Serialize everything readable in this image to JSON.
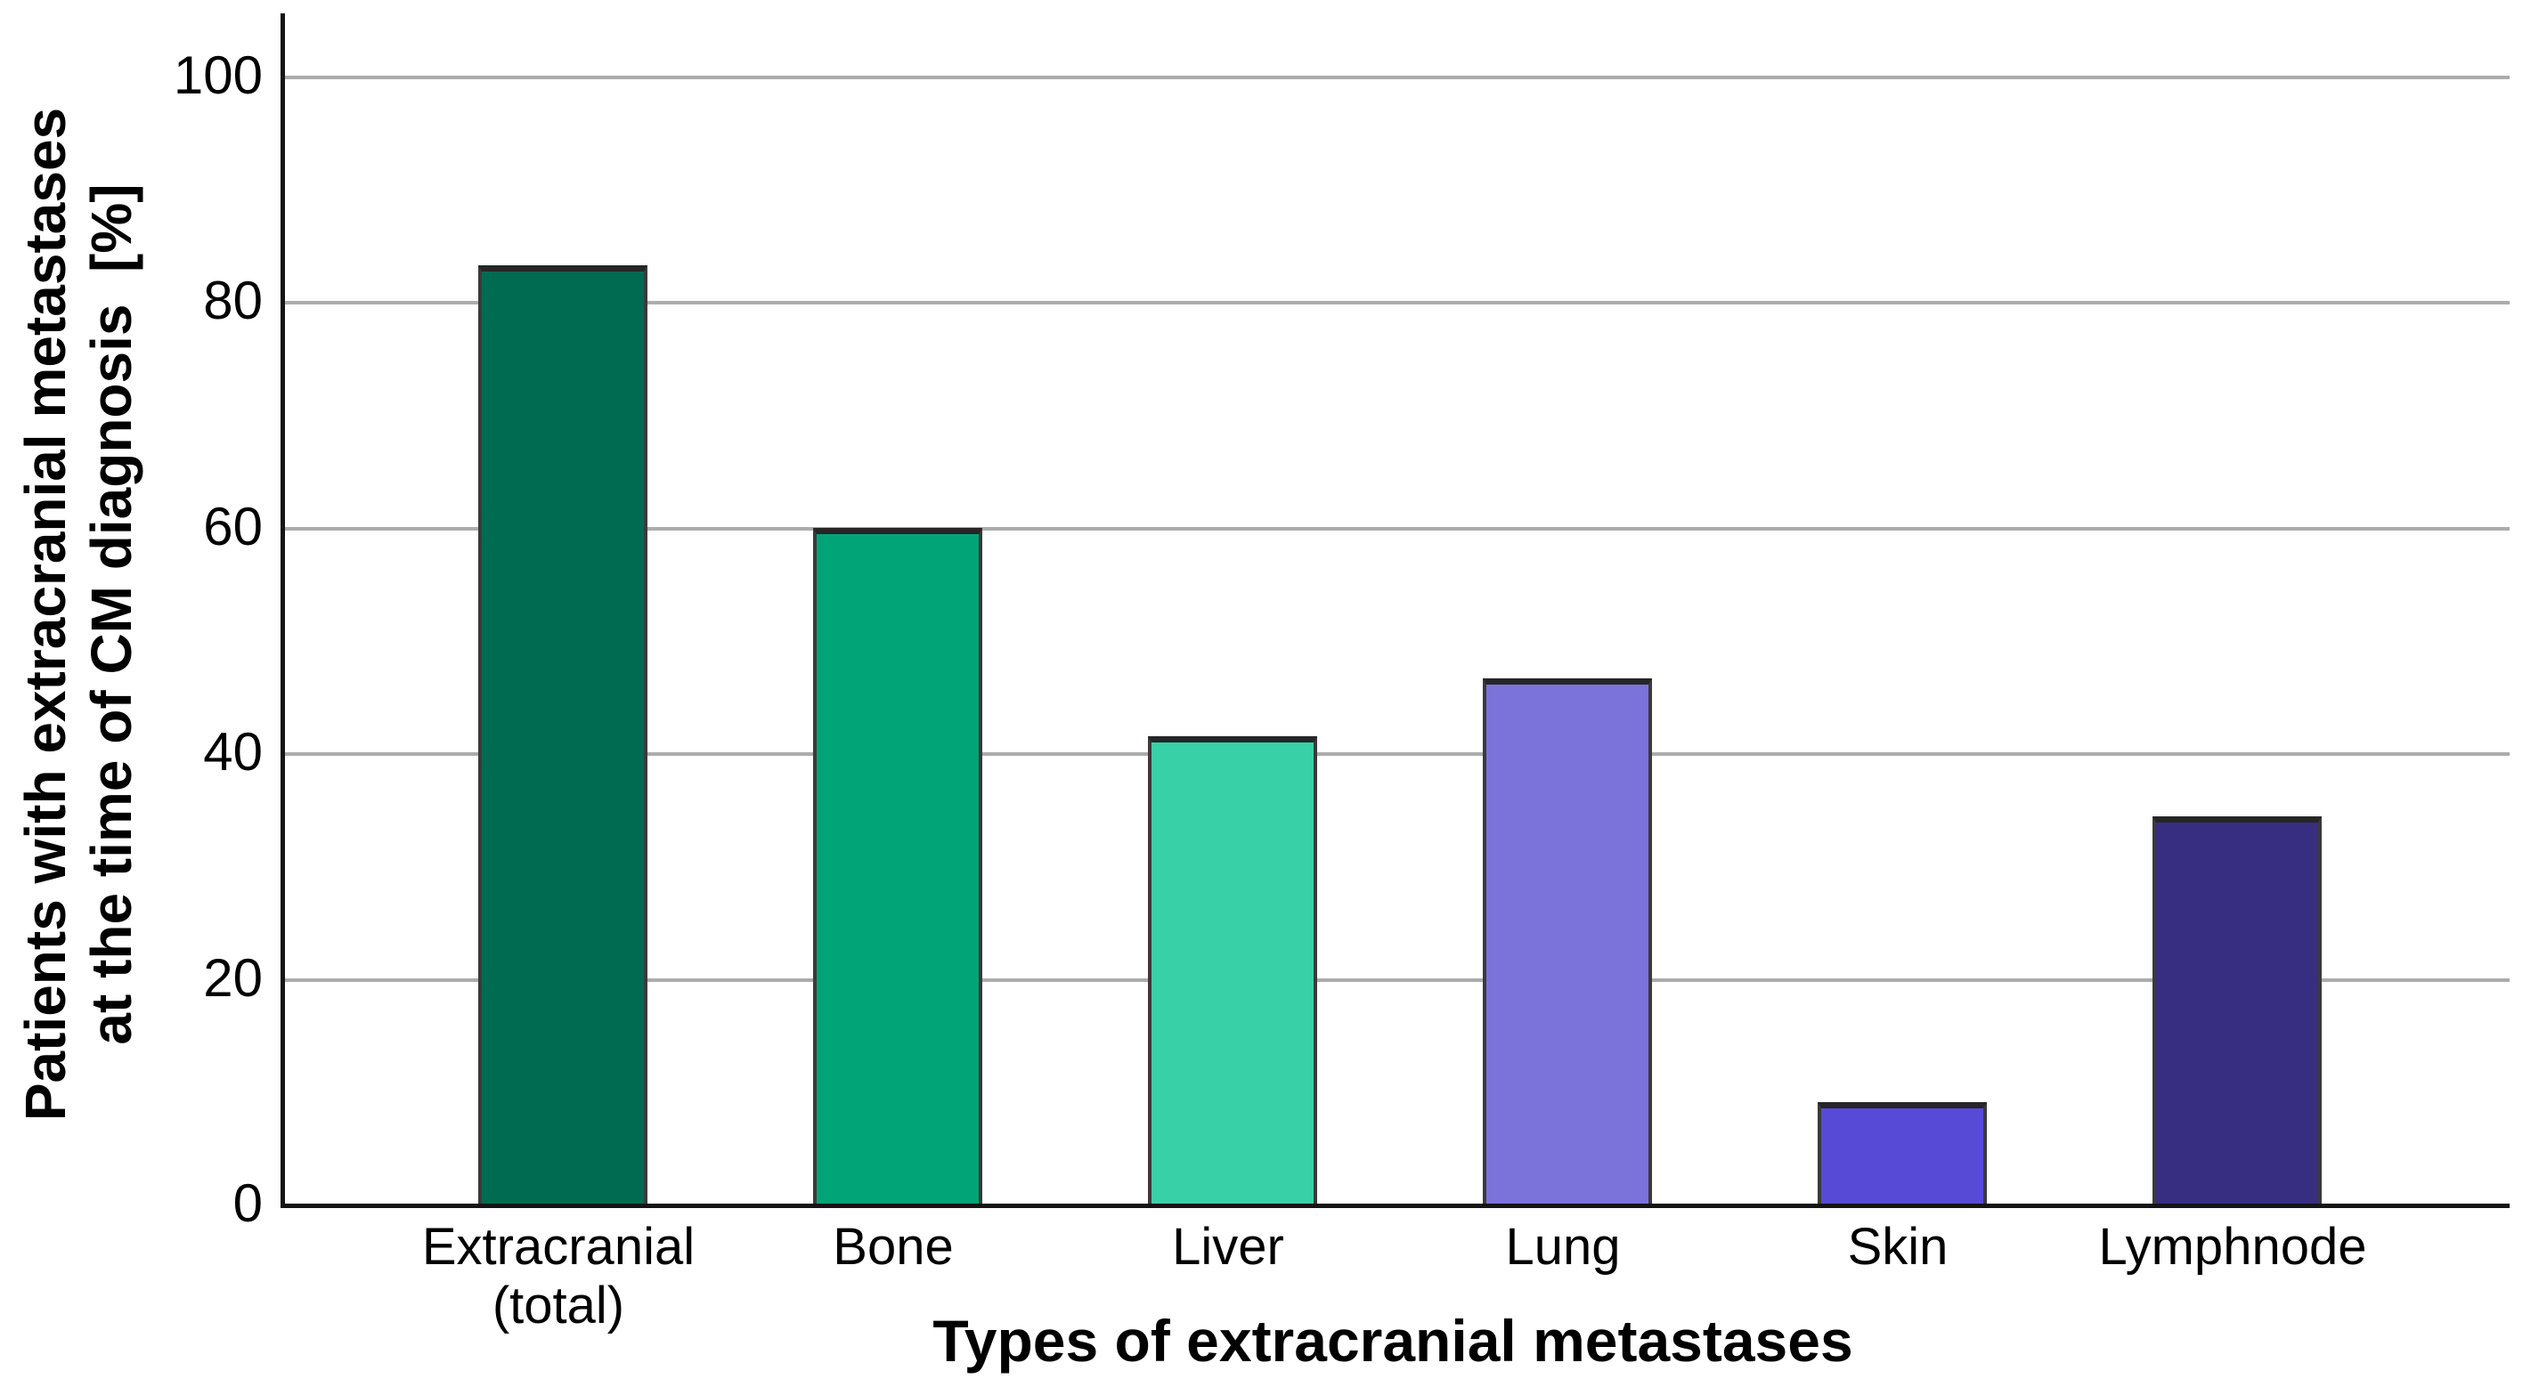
{
  "chart_data": {
    "type": "bar",
    "title": "",
    "xlabel": "Types of extracranial metastases",
    "ylabel_line1": "Patients with extracranial metastases",
    "ylabel_line2": "at the time of CM diagnosis  [%]",
    "categories": [
      [
        "Extracranial",
        "(total)"
      ],
      [
        "Bone"
      ],
      [
        "Liver"
      ],
      [
        "Lung"
      ],
      [
        "Skin"
      ],
      [
        "Lymphnode"
      ]
    ],
    "values": [
      83.2,
      59.9,
      41.4,
      46.6,
      9.0,
      34.3
    ],
    "bar_colors": [
      "#006B51",
      "#00A477",
      "#38D1A7",
      "#7B73D9",
      "#574AD6",
      "#372E81"
    ],
    "yticks": [
      0,
      20,
      40,
      60,
      80,
      100
    ],
    "ylim": [
      0,
      105.5
    ],
    "grid": "horizontal",
    "legend": "none",
    "gridline_color": "#ACACAC",
    "axis_color": "#141414",
    "bar_side_border_color": "#3A3A3A",
    "bar_top_border_color": "#262626"
  }
}
